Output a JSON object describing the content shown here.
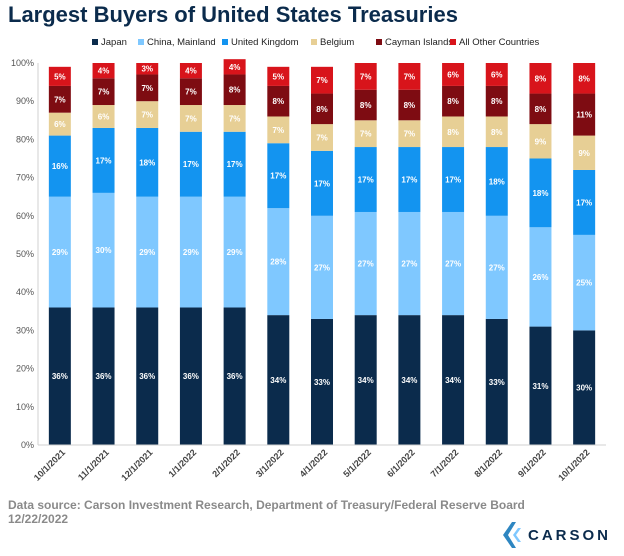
{
  "chart_data": {
    "type": "bar",
    "stacked": true,
    "title": "Largest Buyers of United States Treasuries",
    "xlabel": "",
    "ylabel": "",
    "ylim": [
      0,
      100
    ],
    "y_ticks": [
      "0%",
      "10%",
      "20%",
      "30%",
      "40%",
      "50%",
      "60%",
      "70%",
      "80%",
      "90%",
      "100%"
    ],
    "legend_position": "top",
    "grid": false,
    "categories": [
      "10/1/2021",
      "11/1/2021",
      "12/1/2021",
      "1/1/2022",
      "2/1/2022",
      "3/1/2022",
      "4/1/2022",
      "5/1/2022",
      "6/1/2022",
      "7/1/2022",
      "8/1/2022",
      "9/1/2022",
      "10/1/2022"
    ],
    "series": [
      {
        "name": "Japan",
        "color": "#0b2b4c",
        "values": [
          36,
          36,
          36,
          36,
          36,
          34,
          33,
          34,
          34,
          34,
          33,
          31,
          30
        ]
      },
      {
        "name": "China, Mainland",
        "color": "#7fc8ff",
        "values": [
          29,
          30,
          29,
          29,
          29,
          28,
          27,
          27,
          27,
          27,
          27,
          26,
          25
        ]
      },
      {
        "name": "United Kingdom",
        "color": "#1394f0",
        "values": [
          16,
          17,
          18,
          17,
          17,
          17,
          17,
          17,
          17,
          17,
          18,
          18,
          17
        ]
      },
      {
        "name": "Belgium",
        "color": "#e7cf95",
        "values": [
          6,
          6,
          7,
          7,
          7,
          7,
          7,
          7,
          7,
          8,
          8,
          9,
          9
        ]
      },
      {
        "name": "Cayman Islands",
        "color": "#7e0c12",
        "values": [
          7,
          7,
          7,
          7,
          8,
          8,
          8,
          8,
          8,
          8,
          8,
          8,
          11
        ]
      },
      {
        "name": "All Other Countries",
        "color": "#d8141b",
        "values": [
          5,
          4,
          3,
          4,
          4,
          5,
          7,
          7,
          7,
          6,
          6,
          8,
          8
        ]
      }
    ],
    "value_labels": [
      [
        "36%",
        "36%",
        "36%",
        "36%",
        "36%",
        "34%",
        "33%",
        "34%",
        "34%",
        "34%",
        "33%",
        "31%",
        "30%"
      ],
      [
        "29%",
        "30%",
        "29%",
        "29%",
        "29%",
        "28%",
        "27%",
        "27%",
        "27%",
        "27%",
        "27%",
        "26%",
        "25%"
      ],
      [
        "16%",
        "17%",
        "18%",
        "17%",
        "17%",
        "17%",
        "17%",
        "17%",
        "17%",
        "17%",
        "18%",
        "18%",
        "17%"
      ],
      [
        "6%",
        "6%",
        "7%",
        "7%",
        "7%",
        "7%",
        "7%",
        "7%",
        "7%",
        "8%",
        "8%",
        "9%",
        "9%"
      ],
      [
        "7%",
        "7%",
        "7%",
        "7%",
        "8%",
        "8%",
        "8%",
        "8%",
        "8%",
        "8%",
        "8%",
        "8%",
        "11%"
      ],
      [
        "5%",
        "4%",
        "3%",
        "4%",
        "4%",
        "5%",
        "7%",
        "7%",
        "7%",
        "6%",
        "6%",
        "8%",
        "8%"
      ]
    ]
  },
  "footer": {
    "source_line": "Data source: Carson Investment Research, Department of Treasury/Federal Reserve Board",
    "date_line": "12/22/2022"
  },
  "logo": {
    "text": "CARSON",
    "icon": "carson-chevron-icon"
  }
}
